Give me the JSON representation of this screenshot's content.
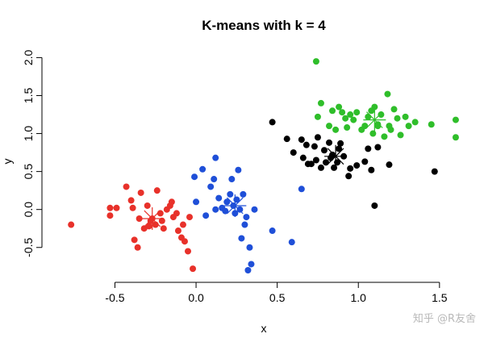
{
  "watermark": "知乎 @R友舍",
  "chart_data": {
    "type": "scatter",
    "title": "K-means with k = 4",
    "xlabel": "x",
    "ylabel": "y",
    "xlim": [
      -0.9,
      1.65
    ],
    "ylim": [
      -0.8,
      2.1
    ],
    "xticks": [
      "-0.5",
      "0.0",
      "0.5",
      "1.0",
      "1.5"
    ],
    "yticks": [
      "-0.5",
      "0.0",
      "0.5",
      "1.0",
      "1.5",
      "2.0"
    ],
    "grid": false,
    "legend": "none",
    "series": [
      {
        "color": "#e8312a",
        "points": [
          [
            -0.77,
            -0.2
          ],
          [
            -0.53,
            0.02
          ],
          [
            -0.53,
            -0.08
          ],
          [
            -0.49,
            0.02
          ],
          [
            -0.43,
            0.3
          ],
          [
            -0.4,
            0.12
          ],
          [
            -0.39,
            0.02
          ],
          [
            -0.38,
            -0.4
          ],
          [
            -0.36,
            -0.5
          ],
          [
            -0.35,
            -0.12
          ],
          [
            -0.34,
            0.22
          ],
          [
            -0.32,
            -0.25
          ],
          [
            -0.3,
            0.05
          ],
          [
            -0.29,
            -0.22
          ],
          [
            -0.28,
            -0.15
          ],
          [
            -0.27,
            -0.12
          ],
          [
            -0.25,
            -0.2
          ],
          [
            -0.24,
            0.25
          ],
          [
            -0.22,
            -0.05
          ],
          [
            -0.21,
            -0.15
          ],
          [
            -0.2,
            -0.25
          ],
          [
            -0.18,
            0.0
          ],
          [
            -0.16,
            0.05
          ],
          [
            -0.15,
            0.1
          ],
          [
            -0.14,
            -0.1
          ],
          [
            -0.12,
            -0.05
          ],
          [
            -0.11,
            -0.28
          ],
          [
            -0.09,
            -0.37
          ],
          [
            -0.08,
            -0.2
          ],
          [
            -0.07,
            -0.42
          ],
          [
            -0.05,
            -0.55
          ],
          [
            -0.04,
            -0.1
          ],
          [
            -0.02,
            -0.78
          ]
        ],
        "centroid": [
          -0.27,
          -0.12
        ]
      },
      {
        "color": "#1f4fd8",
        "points": [
          [
            -0.01,
            0.43
          ],
          [
            0.0,
            0.1
          ],
          [
            0.04,
            0.53
          ],
          [
            0.06,
            -0.08
          ],
          [
            0.09,
            0.3
          ],
          [
            0.11,
            0.4
          ],
          [
            0.12,
            0.68
          ],
          [
            0.12,
            0.0
          ],
          [
            0.14,
            0.15
          ],
          [
            0.16,
            0.02
          ],
          [
            0.18,
            -0.02
          ],
          [
            0.19,
            0.1
          ],
          [
            0.21,
            0.2
          ],
          [
            0.22,
            0.4
          ],
          [
            0.23,
            0.05
          ],
          [
            0.24,
            -0.05
          ],
          [
            0.25,
            0.13
          ],
          [
            0.26,
            0.52
          ],
          [
            0.27,
            0.0
          ],
          [
            0.28,
            -0.38
          ],
          [
            0.29,
            0.2
          ],
          [
            0.3,
            -0.2
          ],
          [
            0.31,
            -0.1
          ],
          [
            0.32,
            -0.8
          ],
          [
            0.33,
            -0.5
          ],
          [
            0.34,
            -0.72
          ],
          [
            0.36,
            0.0
          ],
          [
            0.47,
            -0.28
          ],
          [
            0.59,
            -0.43
          ],
          [
            0.65,
            0.27
          ]
        ],
        "centroid": [
          0.24,
          0.05
        ]
      },
      {
        "color": "#000000",
        "points": [
          [
            0.47,
            1.15
          ],
          [
            0.56,
            0.93
          ],
          [
            0.6,
            0.75
          ],
          [
            0.65,
            0.92
          ],
          [
            0.66,
            0.68
          ],
          [
            0.68,
            0.85
          ],
          [
            0.69,
            0.6
          ],
          [
            0.71,
            0.6
          ],
          [
            0.73,
            0.83
          ],
          [
            0.74,
            0.65
          ],
          [
            0.75,
            0.95
          ],
          [
            0.77,
            0.55
          ],
          [
            0.79,
            0.78
          ],
          [
            0.8,
            0.62
          ],
          [
            0.82,
            0.88
          ],
          [
            0.83,
            0.68
          ],
          [
            0.84,
            0.72
          ],
          [
            0.85,
            0.55
          ],
          [
            0.87,
            0.62
          ],
          [
            0.88,
            0.8
          ],
          [
            0.89,
            0.87
          ],
          [
            0.91,
            0.7
          ],
          [
            0.94,
            0.44
          ],
          [
            0.95,
            0.54
          ],
          [
            0.99,
            0.58
          ],
          [
            1.04,
            0.63
          ],
          [
            1.06,
            0.8
          ],
          [
            1.08,
            0.52
          ],
          [
            1.12,
            0.82
          ],
          [
            1.19,
            0.59
          ],
          [
            1.1,
            0.05
          ],
          [
            1.47,
            0.5
          ]
        ],
        "centroid": [
          0.86,
          0.7
        ]
      },
      {
        "color": "#2fbe2a",
        "points": [
          [
            0.74,
            1.95
          ],
          [
            0.75,
            1.22
          ],
          [
            0.77,
            1.4
          ],
          [
            0.82,
            1.1
          ],
          [
            0.84,
            1.3
          ],
          [
            0.86,
            1.05
          ],
          [
            0.88,
            1.35
          ],
          [
            0.9,
            1.28
          ],
          [
            0.92,
            1.2
          ],
          [
            0.93,
            1.08
          ],
          [
            0.95,
            1.25
          ],
          [
            0.97,
            1.18
          ],
          [
            0.99,
            1.28
          ],
          [
            1.02,
            1.05
          ],
          [
            1.04,
            1.1
          ],
          [
            1.06,
            1.22
          ],
          [
            1.08,
            1.3
          ],
          [
            1.09,
            1.0
          ],
          [
            1.1,
            1.35
          ],
          [
            1.12,
            1.12
          ],
          [
            1.14,
            1.25
          ],
          [
            1.16,
            0.96
          ],
          [
            1.18,
            1.52
          ],
          [
            1.2,
            1.05
          ],
          [
            1.22,
            1.32
          ],
          [
            1.24,
            1.2
          ],
          [
            1.26,
            0.98
          ],
          [
            1.29,
            1.22
          ],
          [
            1.31,
            1.1
          ],
          [
            1.35,
            1.15
          ],
          [
            1.45,
            1.12
          ],
          [
            1.6,
            1.18
          ],
          [
            1.6,
            0.95
          ],
          [
            1.12,
            1.1
          ],
          [
            1.19,
            1.1
          ]
        ],
        "centroid": [
          1.1,
          1.18
        ]
      }
    ]
  }
}
